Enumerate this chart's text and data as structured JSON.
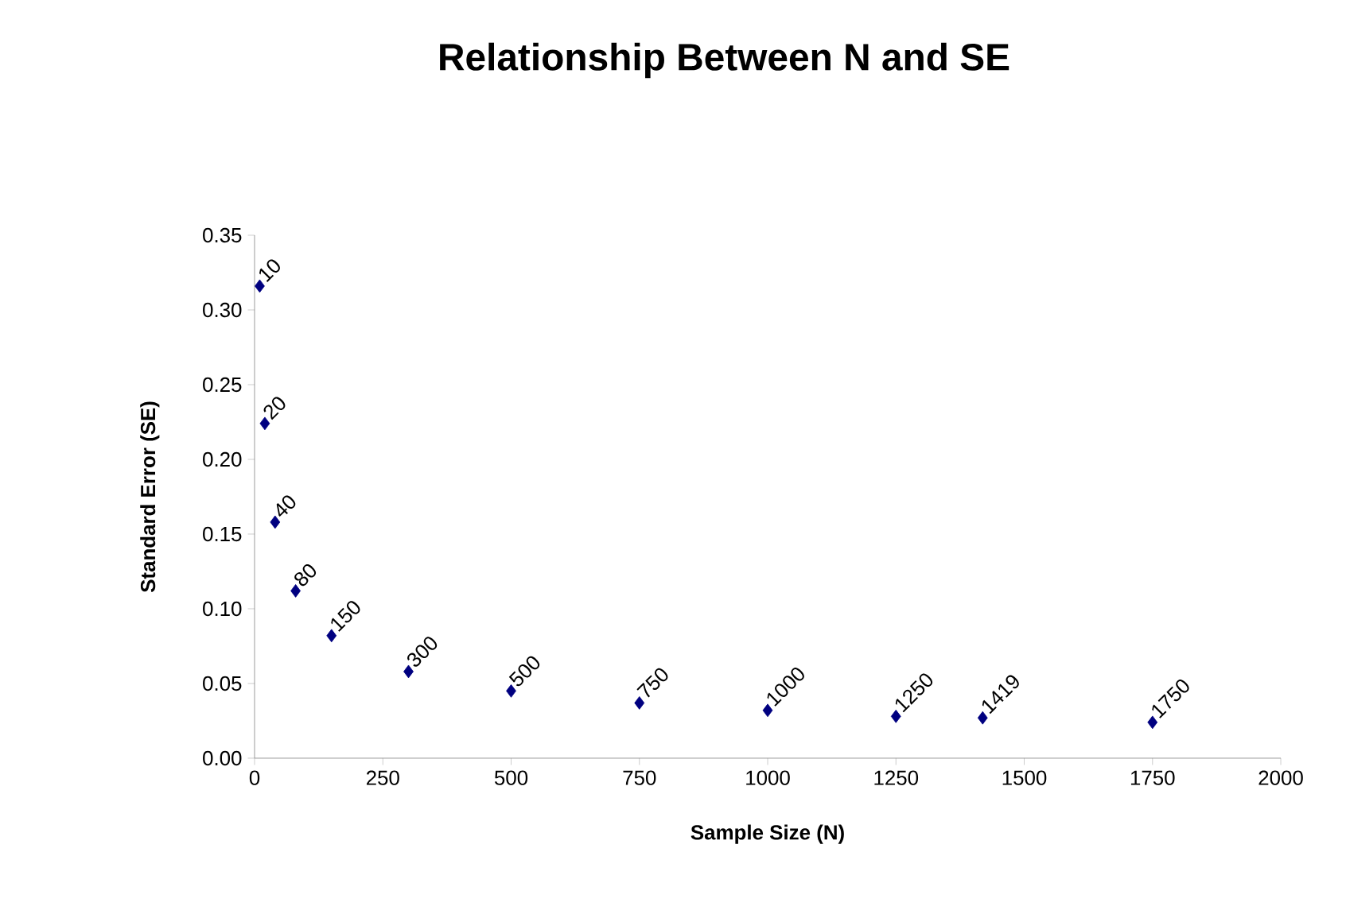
{
  "chart_data": {
    "type": "scatter",
    "title": "Relationship Between N and SE",
    "xlabel": "Sample Size (N)",
    "ylabel": "Standard Error (SE)",
    "x": [
      10,
      20,
      40,
      80,
      150,
      300,
      500,
      750,
      1000,
      1250,
      1419,
      1750
    ],
    "values": [
      0.316,
      0.224,
      0.158,
      0.112,
      0.082,
      0.058,
      0.045,
      0.037,
      0.032,
      0.028,
      0.027,
      0.024
    ],
    "annotations": [
      {
        "text": "10",
        "x": 10,
        "y": 0.316
      },
      {
        "text": "20",
        "x": 20,
        "y": 0.224
      },
      {
        "text": "40",
        "x": 40,
        "y": 0.158
      },
      {
        "text": "80",
        "x": 80,
        "y": 0.112
      },
      {
        "text": "150",
        "x": 150,
        "y": 0.082
      },
      {
        "text": "300",
        "x": 300,
        "y": 0.058
      },
      {
        "text": "500",
        "x": 500,
        "y": 0.045
      },
      {
        "text": "750",
        "x": 750,
        "y": 0.037
      },
      {
        "text": "1000",
        "x": 1000,
        "y": 0.032
      },
      {
        "text": "1250",
        "x": 1250,
        "y": 0.028
      },
      {
        "text": "1419",
        "x": 1419,
        "y": 0.027
      },
      {
        "text": "1750",
        "x": 1750,
        "y": 0.024
      }
    ],
    "color": "#000080",
    "marker": "diamond",
    "grid": false,
    "xlim": [
      0,
      2000
    ],
    "xticks": [
      0,
      250,
      500,
      750,
      1000,
      1250,
      1500,
      1750,
      2000
    ],
    "ylim": [
      0,
      0.35
    ],
    "yticks": [
      {
        "value": 0,
        "label": "0.00"
      },
      {
        "value": 0.05,
        "label": "0.05"
      },
      {
        "value": 0.1,
        "label": "0.10"
      },
      {
        "value": 0.15,
        "label": "0.15"
      },
      {
        "value": 0.2,
        "label": "0.20"
      },
      {
        "value": 0.25,
        "label": "0.25"
      },
      {
        "value": 0.3,
        "label": "0.30"
      },
      {
        "value": 0.35,
        "label": "0.35"
      }
    ]
  }
}
